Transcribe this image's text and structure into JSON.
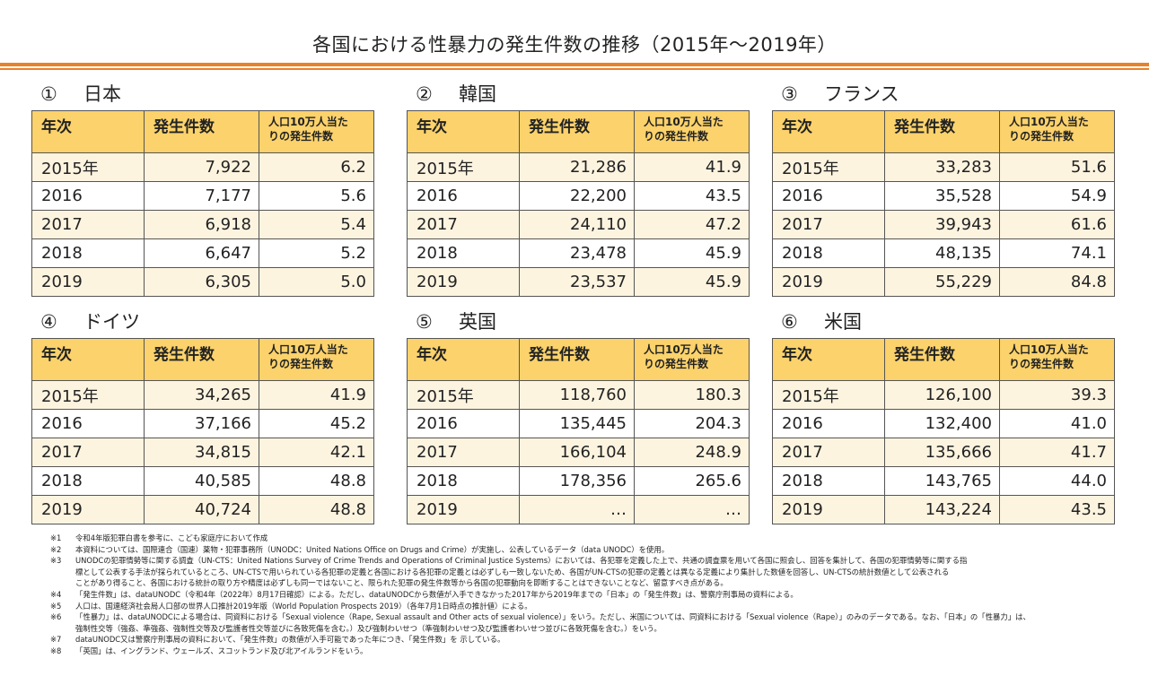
{
  "title": "各国における性暴力の発生件数の推移（2015年～2019年）",
  "header": {
    "col_year": "年次",
    "col_count": "発生件数",
    "col_rate_line1": "人口10万人当た",
    "col_rate_line2": "りの発生件数"
  },
  "countries": [
    {
      "num": "①",
      "name": "日本",
      "rows": [
        [
          "2015年",
          "7,922",
          "6.2"
        ],
        [
          "2016",
          "7,177",
          "5.6"
        ],
        [
          "2017",
          "6,918",
          "5.4"
        ],
        [
          "2018",
          "6,647",
          "5.2"
        ],
        [
          "2019",
          "6,305",
          "5.0"
        ]
      ]
    },
    {
      "num": "②",
      "name": "韓国",
      "rows": [
        [
          "2015年",
          "21,286",
          "41.9"
        ],
        [
          "2016",
          "22,200",
          "43.5"
        ],
        [
          "2017",
          "24,110",
          "47.2"
        ],
        [
          "2018",
          "23,478",
          "45.9"
        ],
        [
          "2019",
          "23,537",
          "45.9"
        ]
      ]
    },
    {
      "num": "③",
      "name": "フランス",
      "rows": [
        [
          "2015年",
          "33,283",
          "51.6"
        ],
        [
          "2016",
          "35,528",
          "54.9"
        ],
        [
          "2017",
          "39,943",
          "61.6"
        ],
        [
          "2018",
          "48,135",
          "74.1"
        ],
        [
          "2019",
          "55,229",
          "84.8"
        ]
      ]
    },
    {
      "num": "④",
      "name": "ドイツ",
      "rows": [
        [
          "2015年",
          "34,265",
          "41.9"
        ],
        [
          "2016",
          "37,166",
          "45.2"
        ],
        [
          "2017",
          "34,815",
          "42.1"
        ],
        [
          "2018",
          "40,585",
          "48.8"
        ],
        [
          "2019",
          "40,724",
          "48.8"
        ]
      ]
    },
    {
      "num": "⑤",
      "name": "英国",
      "rows": [
        [
          "2015年",
          "118,760",
          "180.3"
        ],
        [
          "2016",
          "135,445",
          "204.3"
        ],
        [
          "2017",
          "166,104",
          "248.9"
        ],
        [
          "2018",
          "178,356",
          "265.6"
        ],
        [
          "2019",
          "…",
          "…"
        ]
      ]
    },
    {
      "num": "⑥",
      "name": "米国",
      "rows": [
        [
          "2015年",
          "126,100",
          "39.3"
        ],
        [
          "2016",
          "132,400",
          "41.0"
        ],
        [
          "2017",
          "135,666",
          "41.7"
        ],
        [
          "2018",
          "143,765",
          "44.0"
        ],
        [
          "2019",
          "143,224",
          "43.5"
        ]
      ]
    }
  ],
  "notes": [
    {
      "mark": "※1",
      "lines": [
        "令和4年版犯罪白書を参考に、こども家庭庁において作成"
      ]
    },
    {
      "mark": "※2",
      "lines": [
        "本資料については、国際連合（国連）薬物・犯罪事務所（UNODC：United Nations Office on Drugs and Crime）が実施し、公表しているデータ（data UNODC）を使用。"
      ]
    },
    {
      "mark": "※3",
      "lines": [
        "UNODCの犯罪情勢等に関する調査（UN-CTS：United Nations Survey of Crime Trends and Operations of Criminal Justice Systems）においては、各犯罪を定義した上で、共通の調査票を用いて各国に照会し、回答を集計して、各国の犯罪情勢等に関する指",
        "標として公表する手法が採られているところ、UN-CTSで用いられている各犯罪の定義と各国における各犯罪の定義とは必ずしも一致しないため、各国がUN-CTSの犯罪の定義とは異なる定義により集計した数値を回答し、UN-CTSの統計数値として公表される",
        "ことがあり得ること、各国における統計の取り方や精度は必ずしも同一ではないこと、限られた犯罪の発生件数等から各国の犯罪動向を即断することはできないことなど、留意すべき点がある。"
      ]
    },
    {
      "mark": "※4",
      "lines": [
        "「発生件数」は、dataUNODC（令和4年（2022年）8月17日確認）による。ただし、dataUNODCから数値が入手できなかった2017年から2019年までの「日本」の「発生件数」は、警察庁刑事局の資料による。"
      ]
    },
    {
      "mark": "※5",
      "lines": [
        "人口は、国連経済社会局人口部の世界人口推計2019年版（World Population Prospects 2019）（各年7月1日時点の推計値）による。"
      ]
    },
    {
      "mark": "※6",
      "lines": [
        "「性暴力」は、dataUNODCによる場合は、同資料における「Sexual violence（Rape, Sexual assault and Other acts of sexual violence）」をいう。ただし、米国については、同資料における「Sexual violence（Rape）」のみのデータである。なお、「日本」の「性暴力」は、",
        "強制性交等（強姦、準強姦、強制性交等及び監護者性交等並びに各致死傷を含む。）及び強制わいせつ（準強制わいせつ及び監護者わいせつ並びに各致死傷を含む。）をいう。"
      ]
    },
    {
      "mark": "※7",
      "lines": [
        "dataUNODC又は警察庁刑事局の資料において、「発生件数」の数値が入手可能であった年につき、「発生件数」を 示している。"
      ]
    },
    {
      "mark": "※8",
      "lines": [
        "「英国」は、イングランド、ウェールズ、スコットランド及び北アイルランドをいう。"
      ]
    }
  ]
}
